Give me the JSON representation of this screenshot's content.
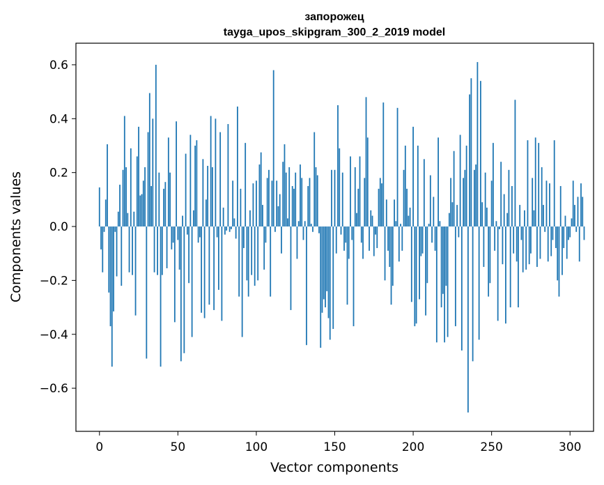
{
  "chart_data": {
    "type": "bar",
    "title": "запорожец",
    "subtitle": "tayga_upos_skipgram_300_2_2019 model",
    "xlabel": "Vector components",
    "ylabel": "Components values",
    "xlim": [
      -15,
      315
    ],
    "ylim": [
      -0.76,
      0.68
    ],
    "xticks": [
      0,
      50,
      100,
      150,
      200,
      250,
      300
    ],
    "xtick_labels": [
      "0",
      "50",
      "100",
      "150",
      "200",
      "250",
      "300"
    ],
    "yticks": [
      -0.6,
      -0.4,
      -0.2,
      0.0,
      0.2,
      0.4,
      0.6
    ],
    "ytick_labels": [
      "−0.6",
      "−0.4",
      "−0.2",
      "0.0",
      "0.2",
      "0.4",
      "0.6"
    ],
    "bar_color": "#1f77b4",
    "grid": false,
    "legend": "none",
    "x_start": 0,
    "values": [
      0.145,
      -0.085,
      -0.17,
      -0.02,
      0.1,
      0.305,
      -0.245,
      -0.37,
      -0.52,
      -0.315,
      -0.02,
      -0.185,
      0.055,
      0.155,
      -0.22,
      0.21,
      0.41,
      0.22,
      0.05,
      -0.17,
      0.29,
      -0.18,
      0.055,
      -0.33,
      0.26,
      0.37,
      0.115,
      0.12,
      0.17,
      0.22,
      -0.49,
      0.35,
      0.495,
      0.15,
      0.4,
      -0.17,
      0.6,
      -0.18,
      0.2,
      -0.52,
      -0.18,
      0.14,
      0.165,
      -0.155,
      0.33,
      0.2,
      -0.085,
      -0.06,
      -0.355,
      0.39,
      -0.05,
      -0.16,
      -0.5,
      0.04,
      -0.47,
      0.27,
      -0.03,
      -0.21,
      0.34,
      -0.41,
      0.06,
      0.3,
      0.32,
      -0.06,
      -0.04,
      -0.32,
      0.25,
      -0.34,
      0.1,
      0.225,
      -0.29,
      0.41,
      0.22,
      -0.31,
      0.4,
      -0.04,
      -0.235,
      0.35,
      -0.35,
      0.07,
      -0.03,
      -0.015,
      0.38,
      -0.02,
      -0.01,
      0.17,
      0.03,
      -0.045,
      0.445,
      -0.26,
      0.14,
      -0.41,
      -0.08,
      0.31,
      -0.2,
      -0.26,
      0.06,
      -0.18,
      0.16,
      -0.22,
      0.17,
      -0.2,
      0.23,
      0.275,
      0.08,
      -0.16,
      -0.06,
      0.18,
      0.21,
      -0.26,
      0.17,
      0.58,
      -0.02,
      0.17,
      0.075,
      0.12,
      -0.1,
      0.24,
      0.305,
      0.2,
      0.03,
      0.22,
      -0.31,
      0.15,
      0.14,
      0.2,
      -0.12,
      0.02,
      0.23,
      0.18,
      -0.05,
      0.02,
      -0.44,
      0.15,
      0.18,
      0.01,
      -0.02,
      0.35,
      0.22,
      0.19,
      -0.025,
      -0.45,
      -0.32,
      -0.27,
      -0.3,
      -0.24,
      -0.34,
      -0.42,
      0.21,
      -0.38,
      0.21,
      -0.1,
      0.45,
      0.29,
      -0.03,
      0.2,
      -0.09,
      -0.06,
      -0.29,
      -0.12,
      0.26,
      -0.05,
      -0.37,
      0.22,
      0.05,
      0.14,
      0.26,
      -0.06,
      -0.12,
      0.18,
      0.48,
      0.33,
      -0.09,
      0.06,
      0.04,
      -0.11,
      -0.03,
      -0.08,
      0.14,
      0.18,
      0.16,
      0.46,
      -0.2,
      0.1,
      -0.09,
      -0.15,
      -0.29,
      -0.22,
      0.1,
      0.02,
      0.44,
      -0.13,
      0.01,
      -0.09,
      0.21,
      0.3,
      0.14,
      0.04,
      0.07,
      -0.28,
      0.37,
      -0.37,
      -0.36,
      0.3,
      -0.27,
      -0.11,
      -0.1,
      0.25,
      -0.33,
      -0.21,
      0.01,
      0.19,
      -0.06,
      0.11,
      -0.09,
      -0.43,
      0.33,
      0.02,
      -0.3,
      -0.25,
      -0.43,
      -0.22,
      -0.41,
      0.05,
      0.18,
      0.09,
      0.28,
      -0.37,
      0.08,
      -0.04,
      0.34,
      -0.46,
      0.18,
      0.21,
      0.3,
      -0.69,
      0.49,
      0.55,
      -0.5,
      0.21,
      0.23,
      0.61,
      -0.42,
      0.54,
      0.09,
      -0.15,
      0.2,
      0.07,
      -0.26,
      -0.21,
      0.17,
      0.31,
      -0.09,
      0.02,
      -0.35,
      -0.01,
      0.24,
      -0.14,
      0.12,
      -0.36,
      0.05,
      0.21,
      -0.3,
      0.15,
      -0.1,
      0.47,
      -0.13,
      -0.3,
      0.08,
      -0.05,
      -0.17,
      0.06,
      -0.16,
      0.32,
      -0.14,
      -0.1,
      0.18,
      0.06,
      0.33,
      -0.15,
      0.31,
      -0.12,
      0.22,
      0.08,
      -0.02,
      0.17,
      -0.13,
      0.16,
      -0.11,
      -0.05,
      0.32,
      -0.08,
      -0.2,
      -0.26,
      0.15,
      -0.18,
      -0.08,
      0.04,
      -0.12,
      -0.05,
      -0.04,
      0.03,
      0.17,
      0.08,
      -0.02,
      0.11,
      -0.13,
      0.16,
      0.11,
      -0.05
    ]
  }
}
